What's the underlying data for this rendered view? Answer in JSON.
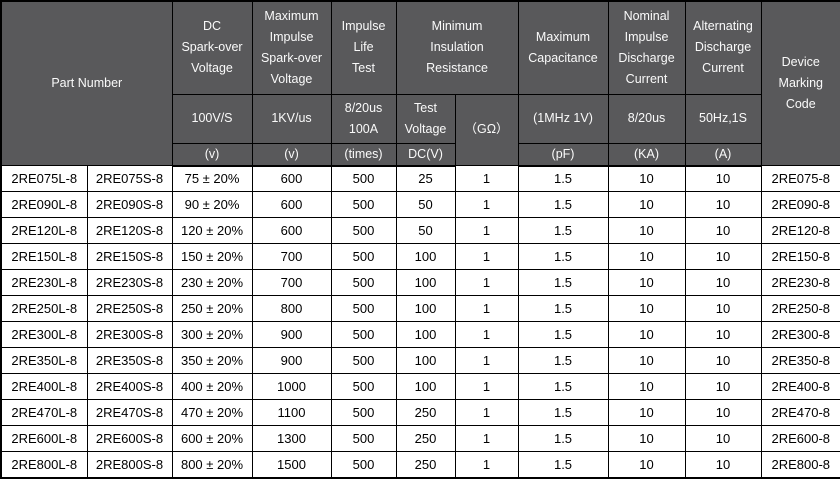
{
  "colors": {
    "header_bg": "#59595b",
    "header_text": "#fafafa",
    "body_bg": "#ffffff",
    "body_text": "#000000",
    "border": "#000000"
  },
  "table": {
    "header": {
      "part_number": "Part Number",
      "dc_sparkover": "DC\nSpark-over\nVoltage",
      "dc_sparkover_cond": "100V/S",
      "dc_sparkover_unit": "(v)",
      "max_impulse": "Maximum\nImpulse\nSpark-over\nVoltage",
      "max_impulse_cond": "1KV/us",
      "max_impulse_unit": "(v)",
      "impulse_life": "Impulse\nLife\nTest",
      "impulse_life_cond": "8/20us\n100A",
      "impulse_life_unit": "(times)",
      "min_insulation": "Minimum\nInsulation\nResistance",
      "test_voltage": "Test\nVoltage",
      "test_voltage_unit": "DC(V)",
      "gohm": "（GΩ）",
      "max_capacitance": "Maximum\nCapacitance",
      "max_capacitance_cond": "(1MHz 1V)",
      "max_capacitance_unit": "(pF)",
      "nominal_impulse": "Nominal\nImpulse\nDischarge\nCurrent",
      "nominal_impulse_cond": "8/20us",
      "nominal_impulse_unit": "(KA)",
      "alt_discharge": "Alternating\nDischarge\nCurrent",
      "alt_discharge_cond": "50Hz,1S",
      "alt_discharge_unit": "(A)",
      "device_marking": "Device\nMarking\nCode"
    },
    "rows": [
      [
        "2RE075L-8",
        "2RE075S-8",
        "75 ± 20%",
        "600",
        "500",
        "25",
        "1",
        "1.5",
        "10",
        "10",
        "2RE075-8"
      ],
      [
        "2RE090L-8",
        "2RE090S-8",
        "90 ± 20%",
        "600",
        "500",
        "50",
        "1",
        "1.5",
        "10",
        "10",
        "2RE090-8"
      ],
      [
        "2RE120L-8",
        "2RE120S-8",
        "120 ± 20%",
        "600",
        "500",
        "50",
        "1",
        "1.5",
        "10",
        "10",
        "2RE120-8"
      ],
      [
        "2RE150L-8",
        "2RE150S-8",
        "150 ± 20%",
        "700",
        "500",
        "100",
        "1",
        "1.5",
        "10",
        "10",
        "2RE150-8"
      ],
      [
        "2RE230L-8",
        "2RE230S-8",
        "230 ± 20%",
        "700",
        "500",
        "100",
        "1",
        "1.5",
        "10",
        "10",
        "2RE230-8"
      ],
      [
        "2RE250L-8",
        "2RE250S-8",
        "250 ± 20%",
        "800",
        "500",
        "100",
        "1",
        "1.5",
        "10",
        "10",
        "2RE250-8"
      ],
      [
        "2RE300L-8",
        "2RE300S-8",
        "300 ± 20%",
        "900",
        "500",
        "100",
        "1",
        "1.5",
        "10",
        "10",
        "2RE300-8"
      ],
      [
        "2RE350L-8",
        "2RE350S-8",
        "350 ± 20%",
        "900",
        "500",
        "100",
        "1",
        "1.5",
        "10",
        "10",
        "2RE350-8"
      ],
      [
        "2RE400L-8",
        "2RE400S-8",
        "400 ± 20%",
        "1000",
        "500",
        "100",
        "1",
        "1.5",
        "10",
        "10",
        "2RE400-8"
      ],
      [
        "2RE470L-8",
        "2RE470S-8",
        "470 ± 20%",
        "1100",
        "500",
        "250",
        "1",
        "1.5",
        "10",
        "10",
        "2RE470-8"
      ],
      [
        "2RE600L-8",
        "2RE600S-8",
        "600 ± 20%",
        "1300",
        "500",
        "250",
        "1",
        "1.5",
        "10",
        "10",
        "2RE600-8"
      ],
      [
        "2RE800L-8",
        "2RE800S-8",
        "800 ± 20%",
        "1500",
        "500",
        "250",
        "1",
        "1.5",
        "10",
        "10",
        "2RE800-8"
      ]
    ]
  }
}
